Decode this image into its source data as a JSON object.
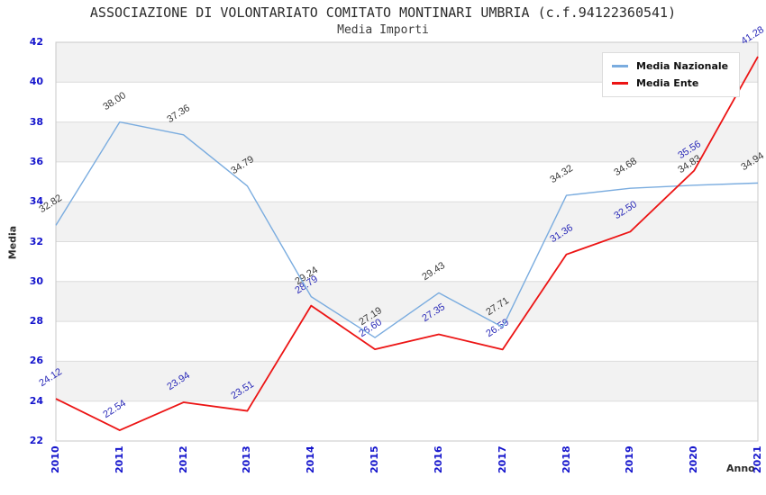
{
  "header": {
    "title": "ASSOCIAZIONE DI VOLONTARIATO COMITATO MONTINARI UMBRIA (c.f.94122360541)",
    "subtitle": "Media Importi"
  },
  "colors": {
    "national_line": "#7aacdf",
    "ente_line": "#ec1414",
    "tick_text": "#1414cc",
    "national_value_label": "#3a3a3a",
    "ente_value_label": "#2a2ab8",
    "band_gray": "#f2f2f2",
    "band_edge": "#dcdcdc",
    "plot_border": "#c8c8c8"
  },
  "legend": {
    "items": [
      {
        "label": "Media Nazionale",
        "color": "#7aacdf"
      },
      {
        "label": "Media Ente",
        "color": "#ec1414"
      }
    ]
  },
  "chart_data": {
    "type": "line",
    "title": "ASSOCIAZIONE DI VOLONTARIATO COMITATO MONTINARI UMBRIA (c.f.94122360541)",
    "subtitle": "Media Importi",
    "xlabel": "Anno",
    "ylabel": "Media",
    "categories": [
      "2010",
      "2011",
      "2012",
      "2013",
      "2014",
      "2015",
      "2016",
      "2017",
      "2018",
      "2019",
      "2020",
      "2021"
    ],
    "series": [
      {
        "name": "Media Nazionale",
        "color": "#7aacdf",
        "label_color": "#3a3a3a",
        "values": [
          32.82,
          38.0,
          37.36,
          34.79,
          29.24,
          27.19,
          29.43,
          27.71,
          34.32,
          34.68,
          34.83,
          34.94
        ]
      },
      {
        "name": "Media Ente",
        "color": "#ec1414",
        "label_color": "#2a2ab8",
        "values": [
          24.12,
          22.54,
          23.94,
          23.51,
          28.79,
          26.6,
          27.35,
          26.59,
          31.36,
          32.5,
          35.56,
          41.28
        ]
      }
    ],
    "ylim": [
      22,
      42
    ],
    "ytick_step": 2,
    "value_label_decimals": 2,
    "grid": "alternating-horizontal-bands",
    "legend_position": "top-right"
  }
}
